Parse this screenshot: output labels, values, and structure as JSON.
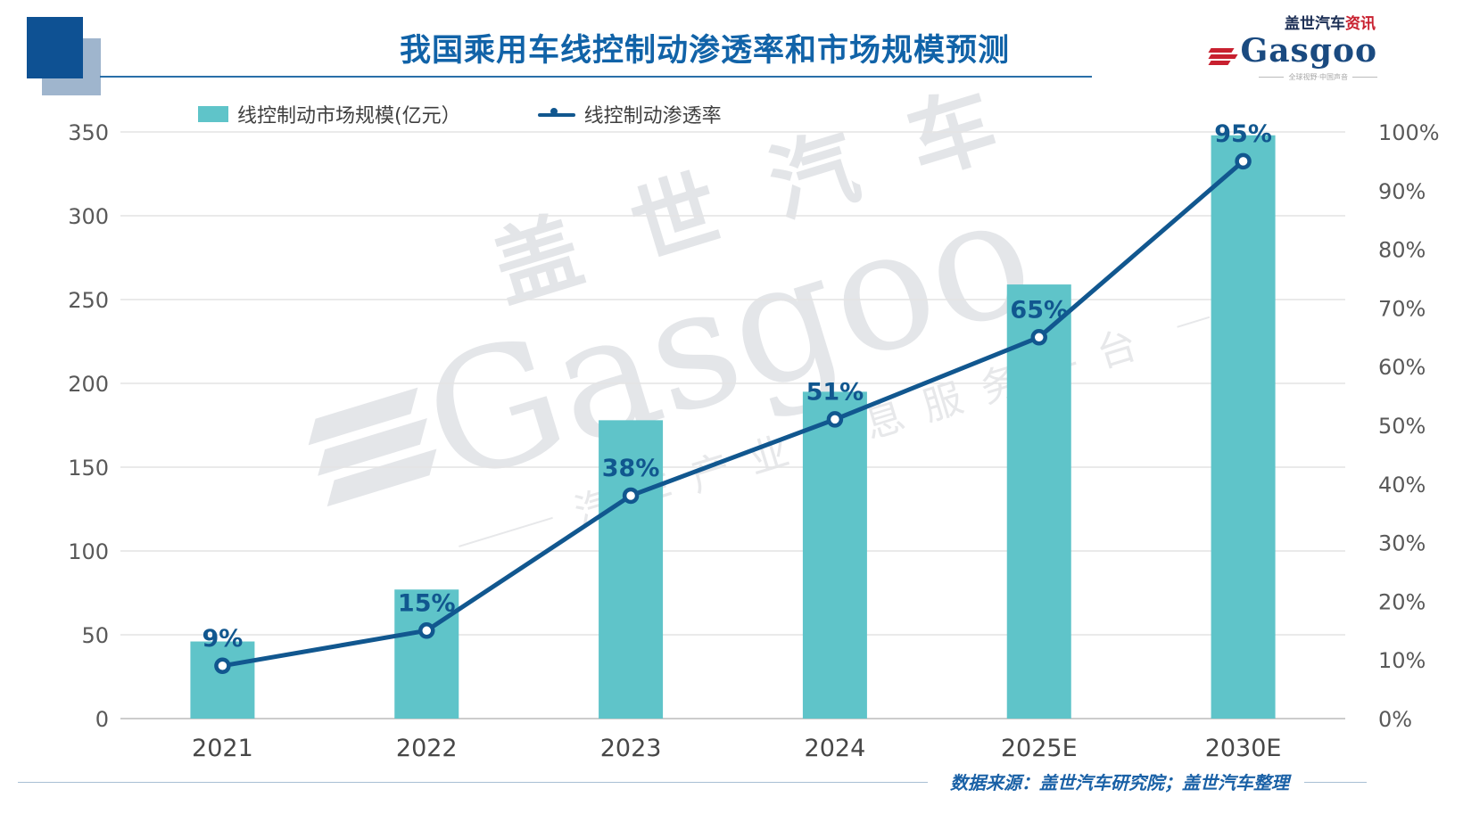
{
  "header": {
    "title": "我国乘用车线控制动渗透率和市场规模预测",
    "logo": {
      "brand_cn": "盖世汽车",
      "brand_cn_suffix": "资讯",
      "brand_en": "Gasgoo",
      "tagline": "全球视野·中国声音"
    }
  },
  "legend": {
    "bar_label": "线控制动市场规模(亿元）",
    "line_label": "线控制动渗透率"
  },
  "watermark": {
    "line_cn": "盖世汽车",
    "line_en": "Gasgoo",
    "tagline": "汽车产业信息服务平台"
  },
  "source": "数据来源：盖世汽车研究院；盖世汽车整理",
  "colors": {
    "bar": "#5FC4C9",
    "line": "#11578F",
    "title_blue": "#1163A8",
    "axis_text": "#595959",
    "gridline": "#E4E4E4",
    "axis_line": "#CCCCCC"
  },
  "chart_data": {
    "type": "bar",
    "subtype": "combo-bar-line-dual-axis",
    "title": "我国乘用车线控制动渗透率和市场规模预测",
    "categories": [
      "2021",
      "2022",
      "2023",
      "2024",
      "2025E",
      "2030E"
    ],
    "series": [
      {
        "name": "线控制动市场规模(亿元）",
        "type": "bar",
        "axis": "left",
        "values": [
          46,
          77,
          178,
          195,
          259,
          348
        ],
        "color": "#5FC4C9"
      },
      {
        "name": "线控制动渗透率",
        "type": "line",
        "axis": "right",
        "values": [
          9,
          15,
          38,
          51,
          65,
          95
        ],
        "labels": [
          "9%",
          "15%",
          "38%",
          "51%",
          "65%",
          "95%"
        ],
        "color": "#11578F"
      }
    ],
    "left_axis": {
      "min": 0,
      "max": 350,
      "step": 50,
      "ticks": [
        "0",
        "50",
        "100",
        "150",
        "200",
        "250",
        "300",
        "350"
      ]
    },
    "right_axis": {
      "min": 0,
      "max": 100,
      "step": 10,
      "ticks": [
        "0%",
        "10%",
        "20%",
        "30%",
        "40%",
        "50%",
        "60%",
        "70%",
        "80%",
        "90%",
        "100%"
      ]
    },
    "grid": true,
    "legend_position": "top",
    "source_note": "数据来源：盖世汽车研究院；盖世汽车整理"
  }
}
